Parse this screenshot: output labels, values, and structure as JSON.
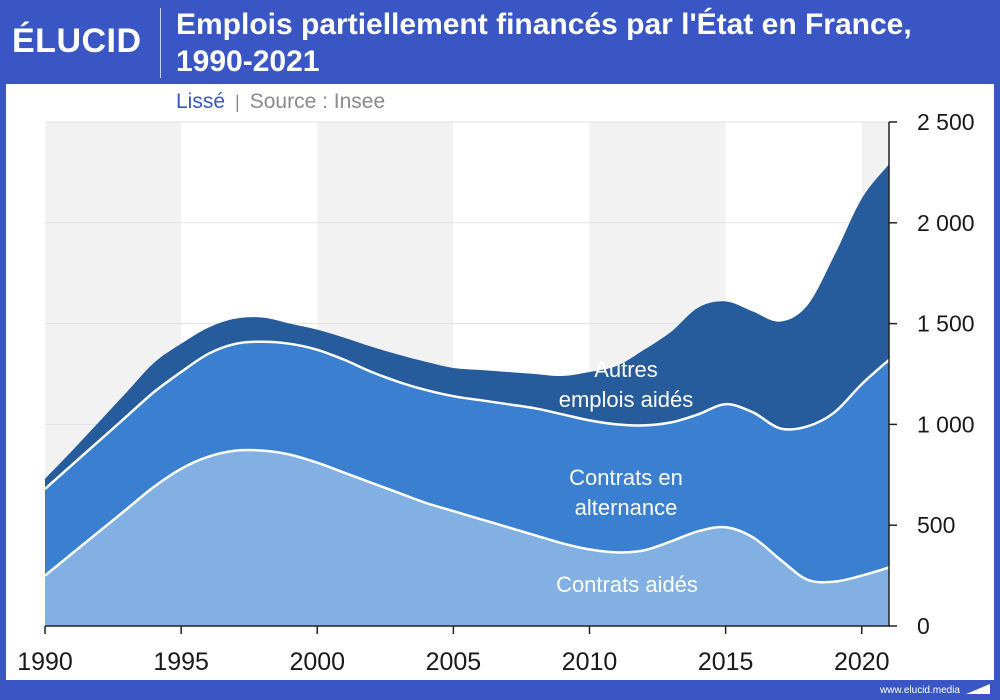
{
  "brand": {
    "logo": "ÉLUCID",
    "url": "www.elucid.media"
  },
  "colors": {
    "header_bg": "#3a56c4",
    "contrats_aides": "#82b0e3",
    "alternance": "#3a7fd0",
    "autres": "#275c9c",
    "band": "#f2f2f2"
  },
  "chart_data": {
    "type": "area",
    "stacked": true,
    "title": "Emplois partiellement financés par l'État en France, 1990-2021",
    "subtitle": "Lissé",
    "source": "Source : Insee",
    "xlabel": "",
    "ylabel": "",
    "xlim": [
      1990,
      2021
    ],
    "ylim": [
      0,
      2500
    ],
    "y_axis_position": "right",
    "x_ticks": [
      1990,
      1995,
      2000,
      2005,
      2010,
      2015,
      2020
    ],
    "y_ticks": [
      0,
      500,
      1000,
      1500,
      2000,
      2500
    ],
    "y_tick_labels": [
      "0",
      "500",
      "1 000",
      "1 500",
      "2 000",
      "2 500"
    ],
    "x": [
      1990,
      1991,
      1992,
      1993,
      1994,
      1995,
      1996,
      1997,
      1998,
      1999,
      2000,
      2001,
      2002,
      2003,
      2004,
      2005,
      2006,
      2007,
      2008,
      2009,
      2010,
      2011,
      2012,
      2013,
      2014,
      2015,
      2016,
      2017,
      2018,
      2019,
      2020,
      2021
    ],
    "series": [
      {
        "name": "Contrats aidés",
        "label": "Contrats aidés",
        "values": [
          250,
          360,
          470,
          580,
          690,
          780,
          840,
          870,
          870,
          850,
          810,
          760,
          710,
          660,
          610,
          570,
          530,
          490,
          450,
          410,
          380,
          365,
          375,
          420,
          470,
          490,
          440,
          330,
          230,
          220,
          250,
          290
        ]
      },
      {
        "name": "Contrats en alternance",
        "label_lines": [
          "Contrats en",
          "alternance"
        ],
        "values": [
          430,
          440,
          450,
          460,
          470,
          480,
          510,
          530,
          540,
          550,
          560,
          560,
          550,
          550,
          560,
          570,
          590,
          610,
          630,
          640,
          640,
          635,
          620,
          590,
          580,
          610,
          620,
          650,
          760,
          840,
          950,
          1030
        ]
      },
      {
        "name": "Autres emplois aidés",
        "label_lines": [
          "Autres",
          "emplois aidés"
        ],
        "values": [
          50,
          70,
          95,
          120,
          145,
          140,
          130,
          125,
          120,
          100,
          100,
          110,
          125,
          135,
          140,
          140,
          150,
          160,
          170,
          190,
          240,
          290,
          375,
          450,
          530,
          510,
          500,
          530,
          600,
          780,
          920,
          970
        ]
      }
    ]
  }
}
